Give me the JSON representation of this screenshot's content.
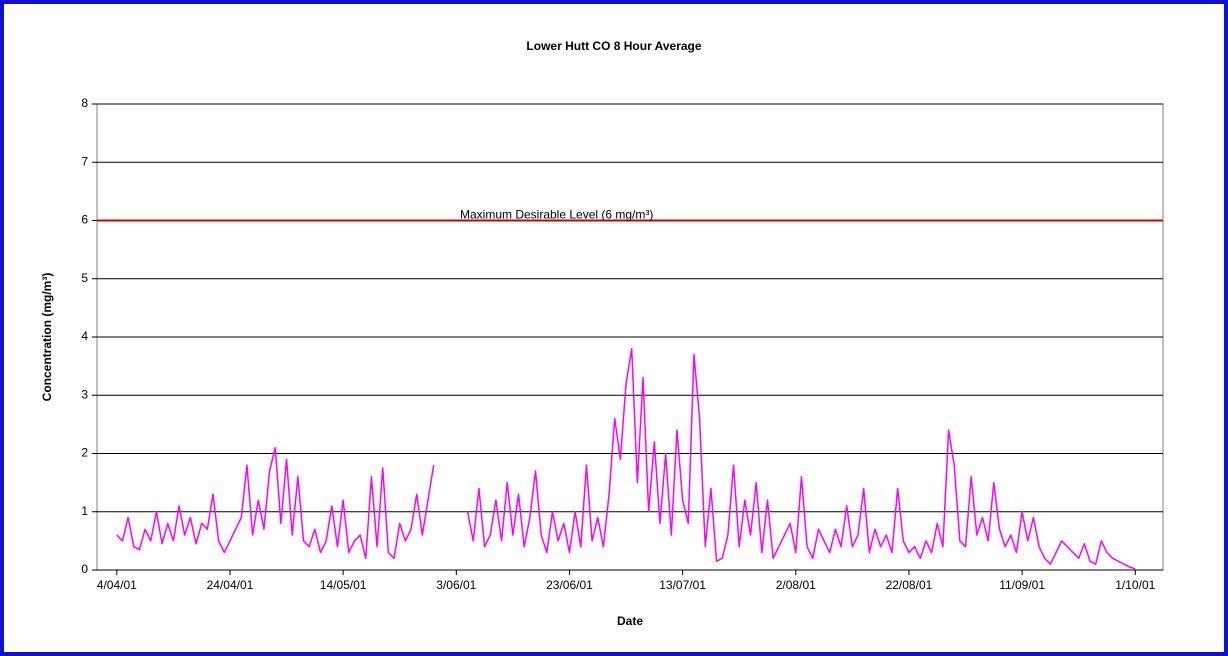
{
  "chart_data": {
    "type": "line",
    "title": "Lower Hutt CO 8 Hour Average",
    "x_label": "Date",
    "y_label": "Concentration (mg/m³)",
    "categories": [
      "4/04/01",
      null,
      null,
      null,
      null,
      null,
      null,
      null,
      null,
      null,
      null,
      null,
      null,
      null,
      null,
      null,
      null,
      null,
      null,
      null,
      "24/04/01",
      null,
      null,
      null,
      null,
      null,
      null,
      null,
      null,
      null,
      null,
      null,
      null,
      null,
      null,
      null,
      null,
      null,
      null,
      null,
      "14/05/01",
      null,
      null,
      null,
      null,
      null,
      null,
      null,
      null,
      null,
      null,
      null,
      null,
      null,
      null,
      null,
      null,
      null,
      null,
      null,
      "3/06/01",
      null,
      null,
      null,
      null,
      null,
      null,
      null,
      null,
      null,
      null,
      null,
      null,
      null,
      null,
      null,
      null,
      null,
      null,
      null,
      "23/06/01",
      null,
      null,
      null,
      null,
      null,
      null,
      null,
      null,
      null,
      null,
      null,
      null,
      null,
      null,
      null,
      null,
      null,
      null,
      null,
      "13/07/01",
      null,
      null,
      null,
      null,
      null,
      null,
      null,
      null,
      null,
      null,
      null,
      null,
      null,
      null,
      null,
      null,
      null,
      null,
      null,
      "2/08/01",
      null,
      null,
      null,
      null,
      null,
      null,
      null,
      null,
      null,
      null,
      null,
      null,
      null,
      null,
      null,
      null,
      null,
      null,
      null,
      "22/08/01",
      null,
      null,
      null,
      null,
      null,
      null,
      null,
      null,
      null,
      null,
      null,
      null,
      null,
      null,
      null,
      null,
      null,
      null,
      null,
      "11/09/01",
      null,
      null,
      null,
      null,
      null,
      null,
      null,
      null,
      null,
      null,
      null,
      null,
      null,
      null,
      null,
      null,
      null,
      null,
      null,
      "1/10/01"
    ],
    "series": [
      {
        "name": "CO 8 Hour Average",
        "color": "#ff00ff",
        "values": [
          0.6,
          0.5,
          0.9,
          0.4,
          0.35,
          0.7,
          0.5,
          1.0,
          0.45,
          0.8,
          0.5,
          1.1,
          0.6,
          0.9,
          0.45,
          0.8,
          0.7,
          1.3,
          0.5,
          0.3,
          0.5,
          0.7,
          0.9,
          1.8,
          0.6,
          1.2,
          0.7,
          1.7,
          2.1,
          0.8,
          1.9,
          0.6,
          1.6,
          0.5,
          0.4,
          0.7,
          0.3,
          0.5,
          1.1,
          0.4,
          1.2,
          0.3,
          0.5,
          0.6,
          0.2,
          1.6,
          0.4,
          1.75,
          0.3,
          0.2,
          0.8,
          0.5,
          0.7,
          1.3,
          0.6,
          1.2,
          1.8,
          null,
          null,
          null,
          null,
          null,
          1.0,
          0.5,
          1.4,
          0.4,
          0.6,
          1.2,
          0.5,
          1.5,
          0.6,
          1.3,
          0.4,
          0.9,
          1.7,
          0.6,
          0.3,
          1.0,
          0.5,
          0.8,
          0.3,
          1.0,
          0.4,
          1.8,
          0.5,
          0.9,
          0.4,
          1.3,
          2.6,
          1.9,
          3.2,
          3.8,
          1.5,
          3.3,
          1.0,
          2.2,
          0.8,
          2.0,
          0.6,
          2.4,
          1.2,
          0.8,
          3.7,
          2.6,
          0.4,
          1.4,
          0.15,
          0.2,
          0.6,
          1.8,
          0.4,
          1.2,
          0.6,
          1.5,
          0.3,
          1.2,
          0.2,
          0.4,
          0.6,
          0.8,
          0.3,
          1.6,
          0.4,
          0.2,
          0.7,
          0.5,
          0.3,
          0.7,
          0.4,
          1.1,
          0.4,
          0.6,
          1.4,
          0.3,
          0.7,
          0.4,
          0.6,
          0.3,
          1.4,
          0.5,
          0.3,
          0.4,
          0.2,
          0.5,
          0.3,
          0.8,
          0.4,
          2.4,
          1.8,
          0.5,
          0.4,
          1.6,
          0.6,
          0.9,
          0.5,
          1.5,
          0.7,
          0.4,
          0.6,
          0.3,
          1.0,
          0.5,
          0.9,
          0.4,
          0.2,
          0.1,
          0.3,
          0.5,
          0.4,
          0.3,
          0.2,
          0.45,
          0.15,
          0.1,
          0.5,
          0.3,
          0.2,
          0.15,
          0.1,
          0.05,
          0.02
        ]
      }
    ],
    "ylim": [
      0,
      8
    ],
    "yticks": [
      0,
      1,
      2,
      3,
      4,
      5,
      6,
      7,
      8
    ],
    "grid": true,
    "reference_line": {
      "value": 6,
      "color": "#cc0000",
      "label": "Maximum Desirable Level (6 mg/m³)"
    }
  }
}
